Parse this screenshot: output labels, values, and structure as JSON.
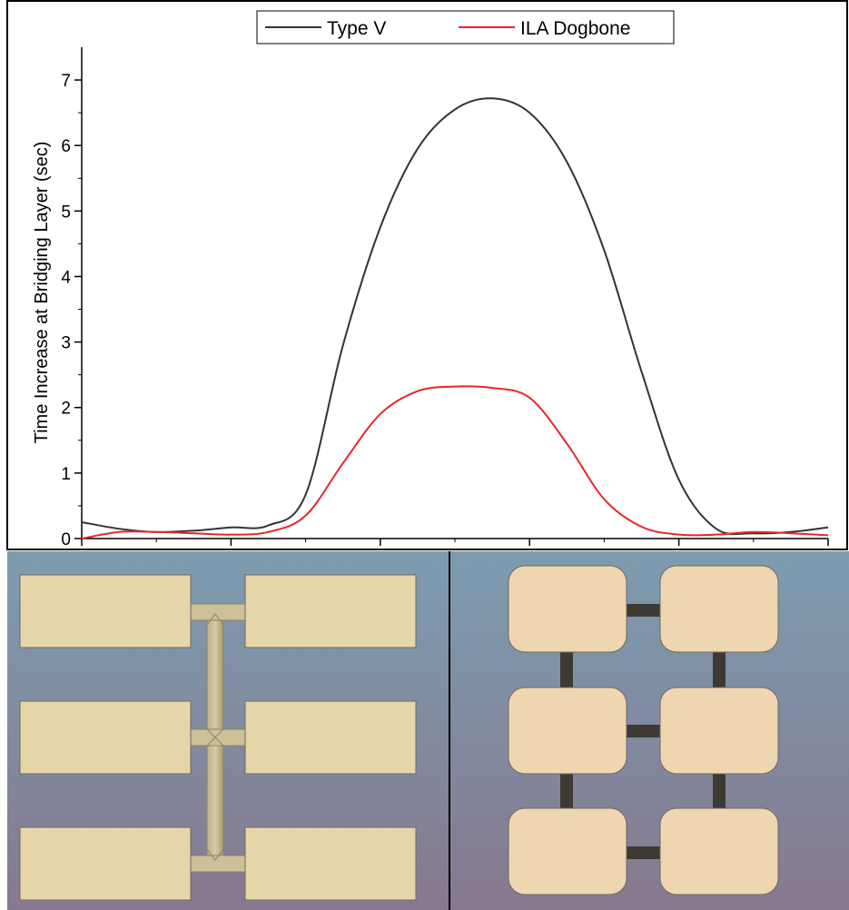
{
  "chart_data": {
    "type": "line",
    "y_label": "Time Increase at Bridging Layer (sec)",
    "x": [
      0,
      0.25,
      0.5,
      0.75,
      1.0,
      1.25,
      1.5,
      1.75,
      2.0,
      2.25,
      2.5,
      2.75,
      3.0,
      3.25,
      3.5,
      3.75,
      4.0,
      4.25,
      4.5,
      4.75,
      5.0
    ],
    "xlim": [
      0,
      5
    ],
    "xticks": [
      0,
      1,
      2,
      3,
      4,
      5
    ],
    "ylim": [
      0,
      7.5
    ],
    "yticks": [
      0,
      1,
      2,
      3,
      4,
      5,
      6,
      7
    ],
    "series": [
      {
        "name": "Type V",
        "color": "#333333",
        "values": [
          0.25,
          0.15,
          0.1,
          0.12,
          0.17,
          0.2,
          0.67,
          2.95,
          4.75,
          5.95,
          6.55,
          6.72,
          6.5,
          5.75,
          4.4,
          2.55,
          0.9,
          0.15,
          0.08,
          0.1,
          0.17
        ]
      },
      {
        "name": "ILA Dogbone",
        "color": "#e8262b",
        "values": [
          0.0,
          0.1,
          0.1,
          0.08,
          0.06,
          0.1,
          0.35,
          1.15,
          1.9,
          2.25,
          2.32,
          2.3,
          2.15,
          1.45,
          0.6,
          0.18,
          0.06,
          0.06,
          0.1,
          0.08,
          0.05
        ]
      }
    ],
    "legend": "top-center",
    "grid": false
  }
}
